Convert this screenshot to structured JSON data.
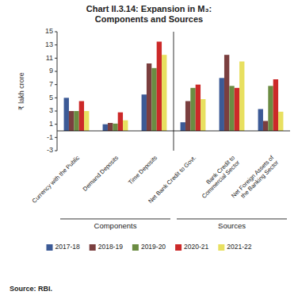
{
  "chart_data": {
    "type": "bar",
    "title": "Chart II.3.14: Expansion in M₃:\nComponents and Sources",
    "ylabel": "₹ lakh crore",
    "source": "Source: RBI.",
    "categories": [
      "Currency with the Public",
      "Demand Deposits",
      "Time Deposits",
      "Net Bank Credit to Govt.",
      "Bank Credit to\nCommercial Sector",
      "Net Foreign Assets of\nthe Banking Sector"
    ],
    "group_labels": [
      "Components",
      "Sources"
    ],
    "series": [
      {
        "name": "2017-18",
        "color": "#3c5a96",
        "values": [
          5.0,
          1.0,
          5.5,
          1.3,
          8.0,
          3.3
        ]
      },
      {
        "name": "2018-19",
        "color": "#7b3f3f",
        "values": [
          3.0,
          1.2,
          10.2,
          4.5,
          11.5,
          1.5
        ]
      },
      {
        "name": "2019-20",
        "color": "#6b8c42",
        "values": [
          3.0,
          1.1,
          9.5,
          6.5,
          6.8,
          6.8
        ]
      },
      {
        "name": "2020-21",
        "color": "#cc2929",
        "values": [
          4.5,
          2.8,
          13.5,
          7.0,
          6.5,
          7.8
        ]
      },
      {
        "name": "2021-22",
        "color": "#e8e060",
        "values": [
          3.0,
          1.6,
          11.5,
          4.8,
          10.5,
          2.9
        ]
      }
    ],
    "ylim": [
      -3,
      15
    ],
    "yticks": [
      -3,
      -1,
      1,
      3,
      5,
      7,
      9,
      11,
      13,
      15
    ],
    "grid": false,
    "legend": "bottom"
  }
}
